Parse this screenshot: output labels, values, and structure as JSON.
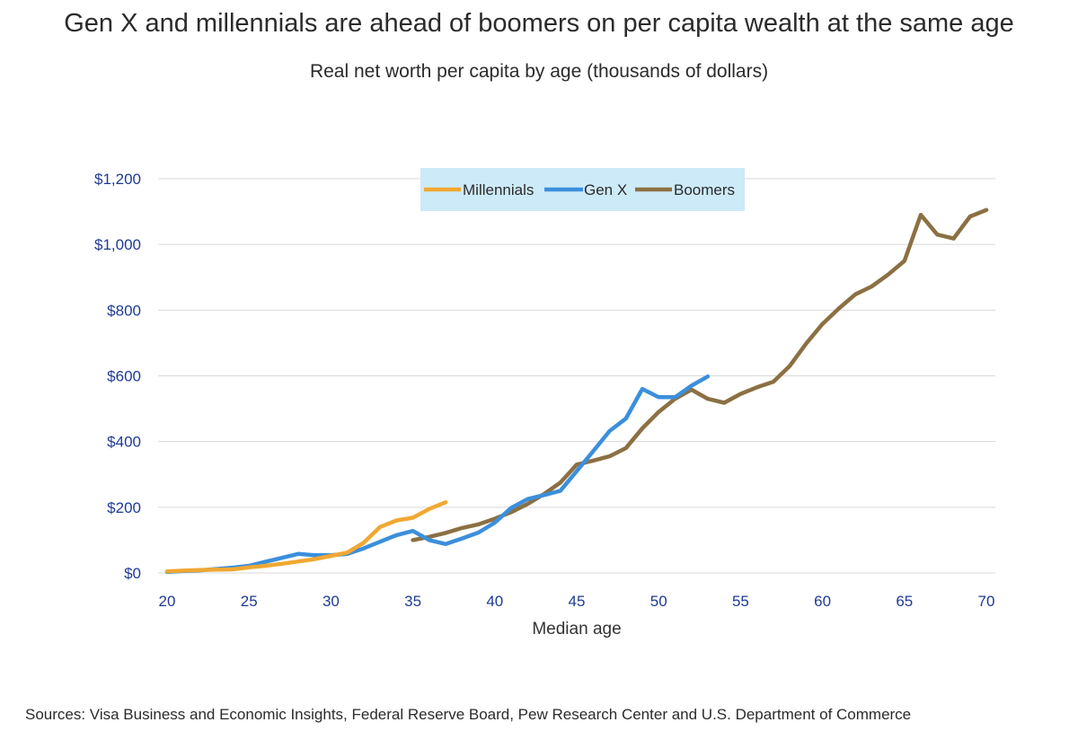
{
  "title": "Gen X and millennials are ahead of boomers on per capita wealth at the same age",
  "subtitle": "Real net worth per capita by age (thousands of dollars)",
  "source": "Sources: Visa Business and Economic Insights, Federal Reserve Board, Pew Research Center and U.S. Department of Commerce",
  "colors": {
    "millennials": "#f0a832",
    "genx": "#3b8fdc",
    "boomers": "#8b7043",
    "legend_bg": "#cdeaf8",
    "grid": "#d9d9d9",
    "tick": "#1f3a93"
  },
  "chart_data": {
    "type": "line",
    "xlabel": "Median age",
    "ylabel": "",
    "xlim": [
      20,
      70
    ],
    "ylim": [
      0,
      1200
    ],
    "xticks": [
      {
        "value": 20,
        "label": "20"
      },
      {
        "value": 25,
        "label": "25"
      },
      {
        "value": 30,
        "label": "30"
      },
      {
        "value": 35,
        "label": "35"
      },
      {
        "value": 40,
        "label": "40"
      },
      {
        "value": 45,
        "label": "45"
      },
      {
        "value": 50,
        "label": "50"
      },
      {
        "value": 55,
        "label": "55"
      },
      {
        "value": 60,
        "label": "60"
      },
      {
        "value": 65,
        "label": "65"
      },
      {
        "value": 70,
        "label": "70"
      }
    ],
    "yticks": [
      {
        "value": 0,
        "label": "$0"
      },
      {
        "value": 200,
        "label": "$200"
      },
      {
        "value": 400,
        "label": "$400"
      },
      {
        "value": 600,
        "label": "$600"
      },
      {
        "value": 800,
        "label": "$800"
      },
      {
        "value": 1000,
        "label": "$1,000"
      },
      {
        "value": 1200,
        "label": "$1,200"
      }
    ],
    "grid": true,
    "legend_position": "top-center",
    "series": [
      {
        "name": "Millennials",
        "color_key": "millennials",
        "x": [
          20,
          21,
          22,
          23,
          24,
          25,
          26,
          27,
          28,
          29,
          30,
          31,
          32,
          33,
          34,
          35,
          36,
          37
        ],
        "y": [
          5,
          7,
          9,
          10,
          11,
          17,
          22,
          28,
          35,
          42,
          52,
          62,
          92,
          140,
          160,
          168,
          195,
          215
        ]
      },
      {
        "name": "Gen X",
        "color_key": "genx",
        "x": [
          20,
          21,
          22,
          23,
          24,
          25,
          26,
          27,
          28,
          29,
          30,
          31,
          32,
          33,
          34,
          35,
          36,
          37,
          38,
          39,
          40,
          41,
          42,
          43,
          44,
          45,
          46,
          47,
          48,
          49,
          50,
          51,
          52,
          53
        ],
        "y": [
          3,
          6,
          8,
          12,
          16,
          22,
          34,
          46,
          58,
          54,
          54,
          58,
          75,
          95,
          115,
          128,
          100,
          88,
          105,
          123,
          153,
          198,
          225,
          237,
          250,
          310,
          370,
          432,
          470,
          560,
          535,
          535,
          570,
          598
        ]
      },
      {
        "name": "Boomers",
        "color_key": "boomers",
        "x": [
          35,
          36,
          37,
          38,
          39,
          40,
          41,
          42,
          43,
          44,
          45,
          46,
          47,
          48,
          49,
          50,
          51,
          52,
          53,
          54,
          55,
          56,
          57,
          58,
          59,
          60,
          61,
          62,
          63,
          64,
          65,
          66,
          67,
          68,
          69,
          70
        ],
        "y": [
          100,
          110,
          122,
          137,
          148,
          165,
          185,
          210,
          240,
          275,
          330,
          342,
          355,
          380,
          440,
          490,
          530,
          558,
          530,
          518,
          545,
          565,
          582,
          630,
          698,
          758,
          805,
          848,
          872,
          908,
          950,
          1090,
          1030,
          1018,
          1085,
          1105
        ]
      }
    ]
  }
}
